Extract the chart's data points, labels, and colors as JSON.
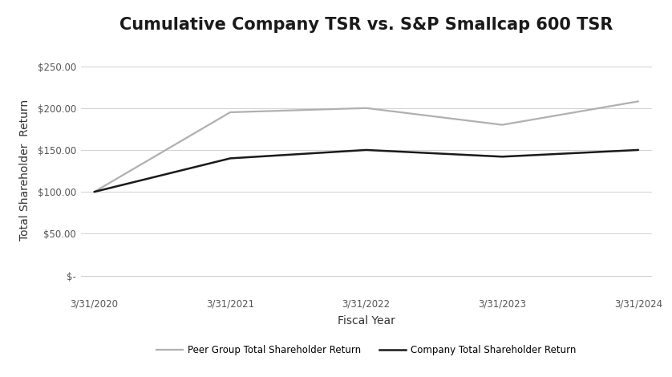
{
  "title": "Cumulative Company TSR vs. S&P Smallcap 600 TSR",
  "xlabel": "Fiscal Year",
  "ylabel": "Total Shareholder  Return",
  "x_labels": [
    "3/31/2020",
    "3/31/2021",
    "3/31/2022",
    "3/31/2023",
    "3/31/2024"
  ],
  "x_values": [
    0,
    1,
    2,
    3,
    4
  ],
  "peer_group": [
    100.0,
    195.0,
    200.0,
    180.0,
    208.0
  ],
  "company": [
    100.0,
    140.0,
    150.0,
    142.0,
    150.0
  ],
  "peer_color": "#b0b0b0",
  "company_color": "#1a1a1a",
  "yticks": [
    0,
    50,
    100,
    150,
    200,
    250
  ],
  "ytick_labels": [
    "$-",
    "$50.00",
    "$100.00",
    "$150.00",
    "$200.00",
    "$250.00"
  ],
  "ylim": [
    -22,
    275
  ],
  "legend_peer": "Peer Group Total Shareholder Return",
  "legend_company": "Company Total Shareholder Return",
  "background_color": "#ffffff",
  "grid_color": "#d0d0d0",
  "title_fontsize": 15,
  "axis_label_fontsize": 10,
  "tick_fontsize": 8.5,
  "legend_fontsize": 8.5
}
